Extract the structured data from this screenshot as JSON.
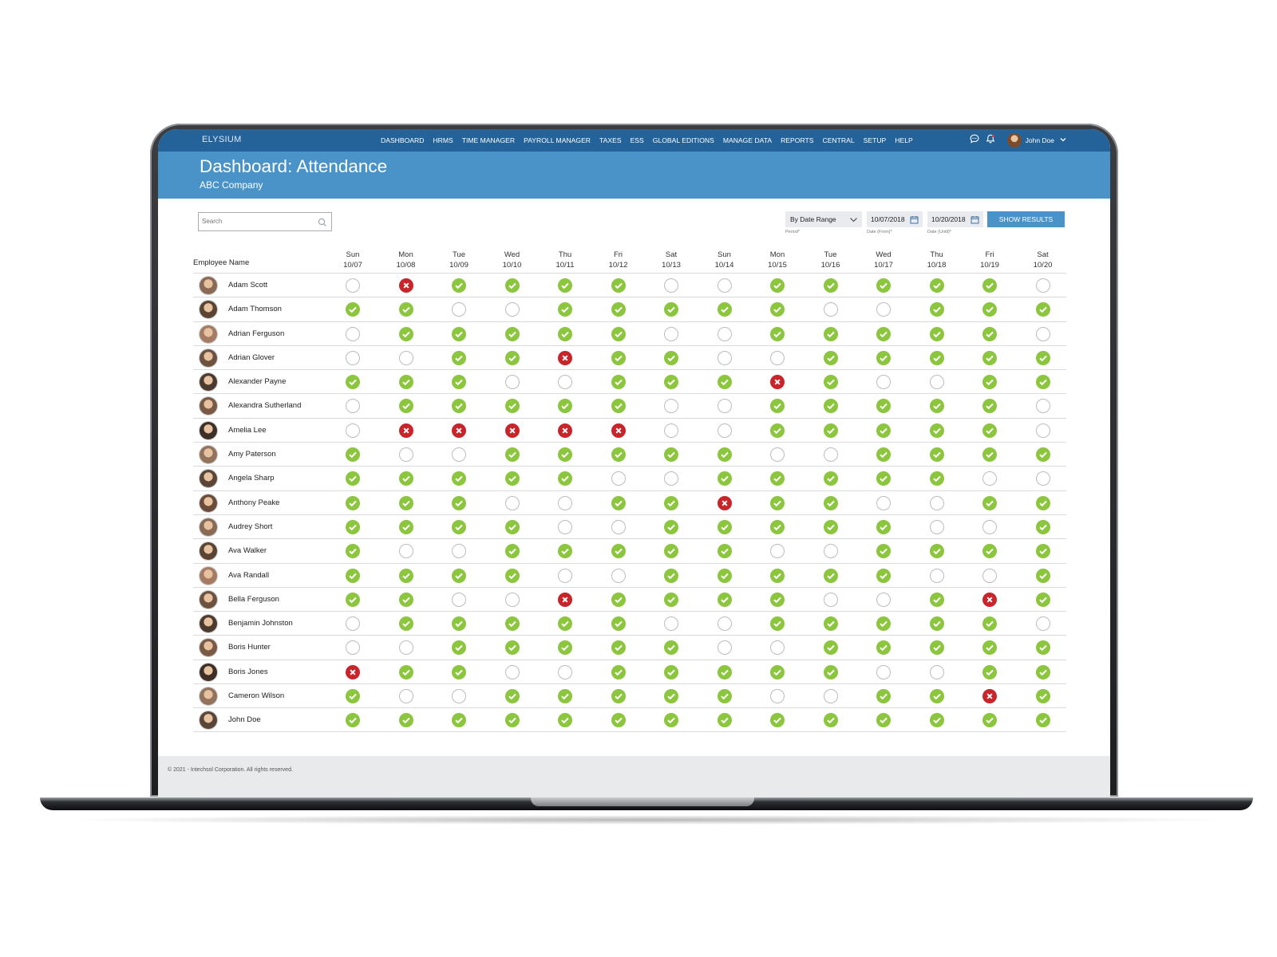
{
  "nav": {
    "logo": "ELYSIUM",
    "items": [
      "DASHBOARD",
      "HRMS",
      "TIME MANAGER",
      "PAYROLL MANAGER",
      "TAXES",
      "ESS",
      "GLOBAL EDITIONS",
      "MANAGE DATA",
      "REPORTS",
      "CENTRAL",
      "SETUP",
      "HELP"
    ],
    "user": "John Doe",
    "icons": [
      "chat-icon",
      "bell-icon",
      "user-avatar",
      "chevron-down-icon"
    ]
  },
  "header": {
    "title": "Dashboard: Attendance",
    "company": "ABC Company"
  },
  "controls": {
    "search_placeholder": "Search",
    "period": {
      "value": "By Date Range",
      "label": "Period*"
    },
    "date_from": {
      "value": "10/07/2018",
      "label": "Date (From)*"
    },
    "date_until": {
      "value": "10/20/2018",
      "label": "Date (Until)*"
    },
    "show_results": "SHOW RESULTS"
  },
  "table": {
    "name_header": "Employee Name",
    "days": [
      {
        "dow": "Sun",
        "date": "10/07"
      },
      {
        "dow": "Mon",
        "date": "10/08"
      },
      {
        "dow": "Tue",
        "date": "10/09"
      },
      {
        "dow": "Wed",
        "date": "10/10"
      },
      {
        "dow": "Thu",
        "date": "10/11"
      },
      {
        "dow": "Fri",
        "date": "10/12"
      },
      {
        "dow": "Sat",
        "date": "10/13"
      },
      {
        "dow": "Sun",
        "date": "10/14"
      },
      {
        "dow": "Mon",
        "date": "10/15"
      },
      {
        "dow": "Tue",
        "date": "10/16"
      },
      {
        "dow": "Wed",
        "date": "10/17"
      },
      {
        "dow": "Thu",
        "date": "10/18"
      },
      {
        "dow": "Fri",
        "date": "10/19"
      },
      {
        "dow": "Sat",
        "date": "10/20"
      }
    ],
    "status_legend": {
      "P": "present",
      "A": "absent",
      "N": "none"
    },
    "rows": [
      {
        "name": "Adam Scott",
        "status": "NAPPPPNNPPPPPN"
      },
      {
        "name": "Adam Thomson",
        "status": "PPNNPPPPPNNPPP"
      },
      {
        "name": "Adrian Ferguson",
        "status": "NPPPPPNNPPPPPN"
      },
      {
        "name": "Adrian Glover",
        "status": "NNPPAPPNNPPPPP"
      },
      {
        "name": "Alexander Payne",
        "status": "PPPNNPPPAPNNPP"
      },
      {
        "name": "Alexandra Sutherland",
        "status": "NPPPPPNNPPPPPN"
      },
      {
        "name": "Amelia Lee",
        "status": "NAAAAANNPPPPPN"
      },
      {
        "name": "Amy Paterson",
        "status": "PNNPPPPPNNPPPP"
      },
      {
        "name": "Angela Sharp",
        "status": "PPPPPNNPPPPPNN"
      },
      {
        "name": "Anthony Peake",
        "status": "PPPNNPPAPPNNPP"
      },
      {
        "name": "Audrey Short",
        "status": "PPPPNNPPPPPNNP"
      },
      {
        "name": "Ava Walker",
        "status": "PNNPPPPPNNPPPP"
      },
      {
        "name": "Ava Randall",
        "status": "PPPPNNPPPPPNNP"
      },
      {
        "name": "Bella Ferguson",
        "status": "PPNNAPPPPNNPAP"
      },
      {
        "name": "Benjamin Johnston",
        "status": "NPPPPPNNPPPPPN"
      },
      {
        "name": "Boris Hunter",
        "status": "NNPPPPPNNPPPPP"
      },
      {
        "name": "Boris Jones",
        "status": "APPNNPPPPPNNPP"
      },
      {
        "name": "Cameron Wilson",
        "status": "PNNPPPPPNNPPAP"
      },
      {
        "name": "John Doe",
        "status": "PPPPPPPPPPPPPP"
      }
    ]
  },
  "footer": {
    "copyright": "© 2021 - Intechsol Corporation. All rights reserved."
  },
  "colors": {
    "nav": "#24629a",
    "banner": "#4a93c8",
    "present": "#8cc63f",
    "absent": "#c8242a"
  }
}
